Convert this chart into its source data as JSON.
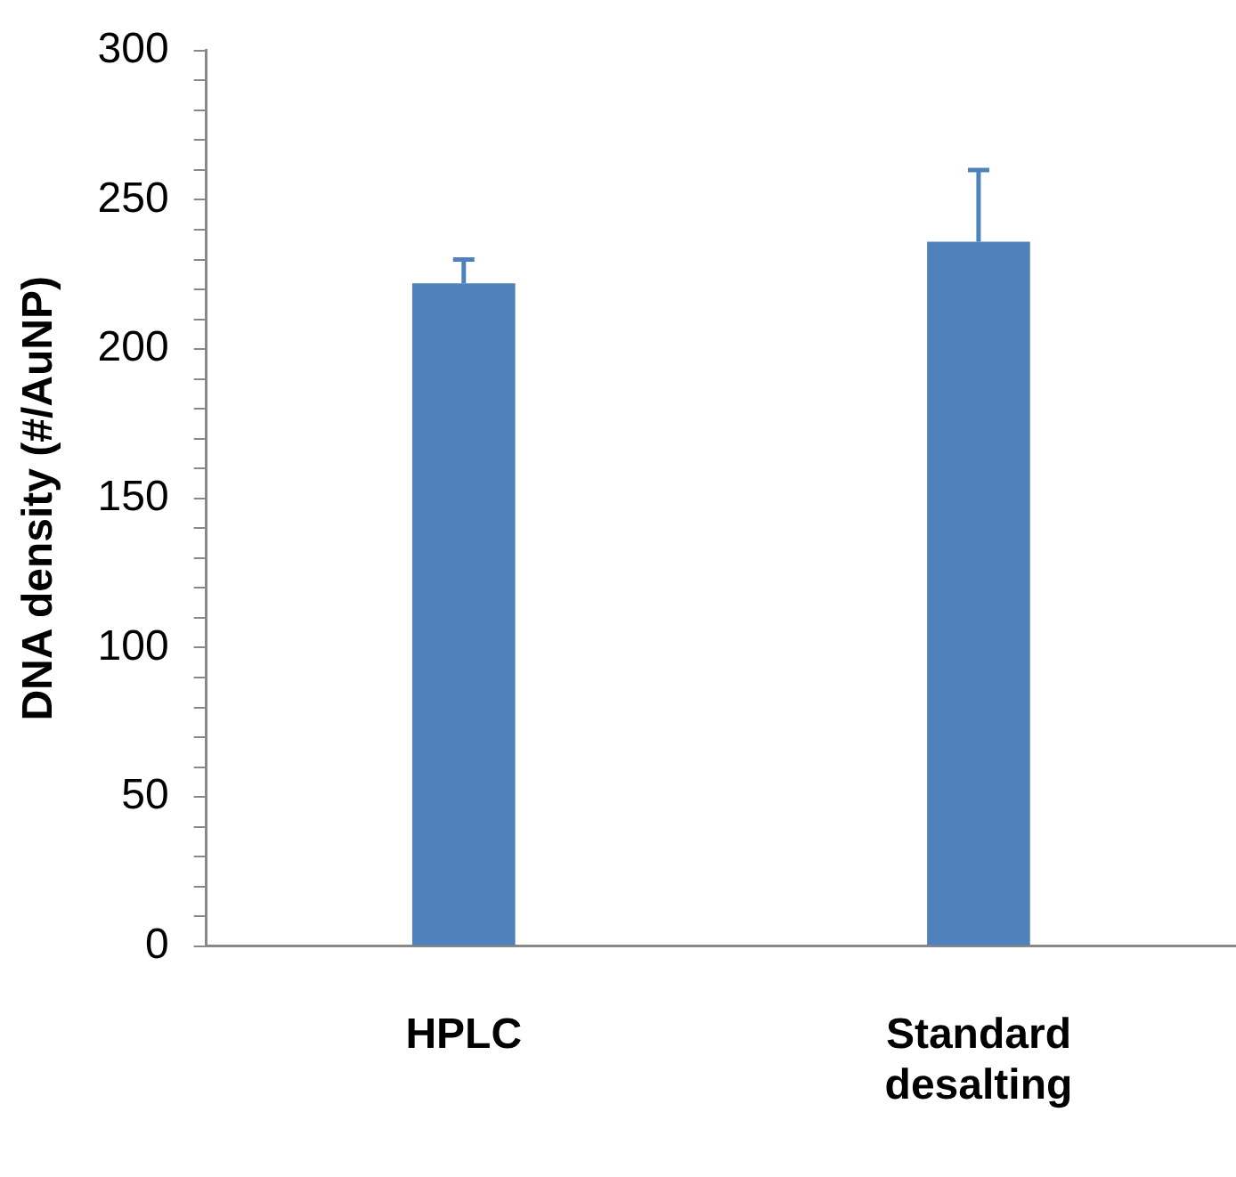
{
  "chart_data": {
    "type": "bar",
    "ylabel": "DNA density (#/AuNP)",
    "categories": [
      "HPLC",
      "Standard desalting"
    ],
    "series": [
      {
        "color": "#4f81bd",
        "values": [
          222,
          236
        ],
        "errors": [
          8,
          24
        ]
      }
    ],
    "ylim": [
      0,
      300
    ],
    "yticks": [
      0,
      {
        "value": 10,
        "label": null
      },
      {
        "value": 20,
        "label": null
      },
      {
        "value": 30,
        "label": null
      },
      {
        "value": 40,
        "label": null
      },
      50,
      {
        "value": 60,
        "label": null
      },
      {
        "value": 70,
        "label": null
      },
      {
        "value": 80,
        "label": null
      },
      {
        "value": 90,
        "label": null
      },
      100,
      {
        "value": 110,
        "label": null
      },
      {
        "value": 120,
        "label": null
      },
      {
        "value": 130,
        "label": null
      },
      {
        "value": 140,
        "label": null
      },
      150,
      {
        "value": 160,
        "label": null
      },
      {
        "value": 170,
        "label": null
      },
      {
        "value": 180,
        "label": null
      },
      {
        "value": 190,
        "label": null
      },
      200,
      {
        "value": 210,
        "label": null
      },
      {
        "value": 220,
        "label": null
      },
      {
        "value": 230,
        "label": null
      },
      {
        "value": 240,
        "label": null
      },
      250,
      {
        "value": 260,
        "label": null
      },
      {
        "value": 270,
        "label": null
      },
      {
        "value": 280,
        "label": null
      },
      {
        "value": 290,
        "label": null
      },
      300
    ],
    "grid": false,
    "legend": false
  }
}
